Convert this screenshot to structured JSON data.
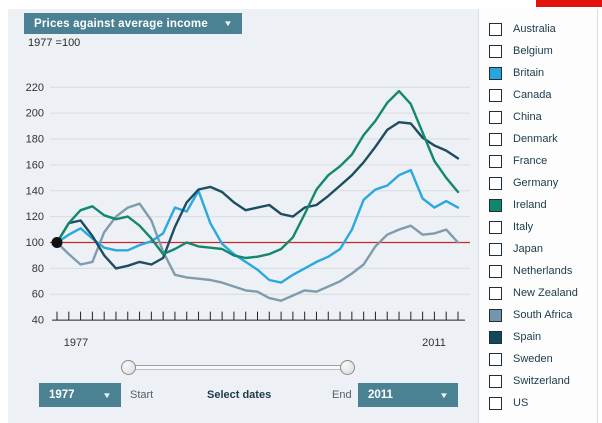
{
  "header": {
    "metric_dropdown_label": "Prices against average income",
    "dropdown_arrow": "▼",
    "index_note": "1977 =100"
  },
  "chart_data": {
    "type": "line",
    "title": "Prices against average income",
    "subtitle": "1977 =100",
    "x_start": 1977,
    "x_end": 2011,
    "x_axis_tick_labels": [
      "1977",
      "2011"
    ],
    "y_ticks": [
      40,
      60,
      80,
      100,
      120,
      140,
      160,
      180,
      200,
      220
    ],
    "ylim": [
      40,
      220
    ],
    "grid": true,
    "legend_position": "right-checklist",
    "reference_line": {
      "value": 100,
      "color": "#c62a2a"
    },
    "start_point_marker": {
      "x": 1977,
      "y": 100
    },
    "series": [
      {
        "name": "South Africa",
        "color": "#7e9cae",
        "values": [
          100,
          91,
          83,
          85,
          108,
          120,
          127,
          130,
          117,
          93,
          75,
          73,
          72,
          71,
          69,
          66,
          63,
          62,
          57,
          55,
          59,
          63,
          62,
          66,
          70,
          76,
          83,
          97,
          106,
          110,
          113,
          106,
          107,
          110,
          100
        ]
      },
      {
        "name": "Britain",
        "color": "#2aa8e0",
        "values": [
          100,
          106,
          111,
          103,
          96,
          94,
          94,
          98,
          101,
          107,
          127,
          124,
          140,
          115,
          99,
          91,
          85,
          79,
          71,
          69,
          75,
          80,
          85,
          89,
          95,
          110,
          133,
          141,
          144,
          152,
          156,
          134,
          127,
          132,
          127
        ]
      },
      {
        "name": "Spain",
        "color": "#1c4d62",
        "values": [
          100,
          115,
          117,
          105,
          90,
          80,
          82,
          85,
          83,
          88,
          112,
          131,
          141,
          143,
          139,
          131,
          125,
          127,
          129,
          122,
          120,
          127,
          129,
          136,
          144,
          152,
          162,
          174,
          187,
          193,
          192,
          181,
          175,
          171,
          165
        ]
      },
      {
        "name": "Ireland",
        "color": "#13886e",
        "values": [
          100,
          115,
          125,
          128,
          121,
          118,
          120,
          113,
          103,
          91,
          95,
          100,
          97,
          96,
          95,
          90,
          88,
          89,
          91,
          95,
          104,
          122,
          141,
          152,
          159,
          168,
          183,
          194,
          208,
          217,
          207,
          185,
          163,
          150,
          139
        ]
      }
    ]
  },
  "legend": {
    "items": [
      {
        "label": "Australia",
        "checked": false
      },
      {
        "label": "Belgium",
        "checked": false
      },
      {
        "label": "Britain",
        "checked": true,
        "color": "#29a5dc"
      },
      {
        "label": "Canada",
        "checked": false
      },
      {
        "label": "China",
        "checked": false
      },
      {
        "label": "Denmark",
        "checked": false
      },
      {
        "label": "France",
        "checked": false
      },
      {
        "label": "Germany",
        "checked": false
      },
      {
        "label": "Ireland",
        "checked": true,
        "color": "#10866c"
      },
      {
        "label": "Italy",
        "checked": false
      },
      {
        "label": "Japan",
        "checked": false
      },
      {
        "label": "Netherlands",
        "checked": false
      },
      {
        "label": "New Zealand",
        "checked": false
      },
      {
        "label": "South Africa",
        "checked": true,
        "color": "#7495aa"
      },
      {
        "label": "Spain",
        "checked": true,
        "color": "#15475c"
      },
      {
        "label": "Sweden",
        "checked": false
      },
      {
        "label": "Switzerland",
        "checked": false
      },
      {
        "label": "US",
        "checked": false
      }
    ]
  },
  "controls": {
    "start_label": "Start",
    "select_dates_label": "Select dates",
    "end_label": "End",
    "start_year_dropdown": "1977",
    "end_year_dropdown": "2011",
    "dropdown_arrow": "▼"
  },
  "colors": {
    "accent_teal": "#4a8294",
    "economist_red": "#e3120b",
    "panel_bg": "#edf0f4",
    "grid": "#d8dcdf",
    "text_dark": "#1c3a4a"
  }
}
